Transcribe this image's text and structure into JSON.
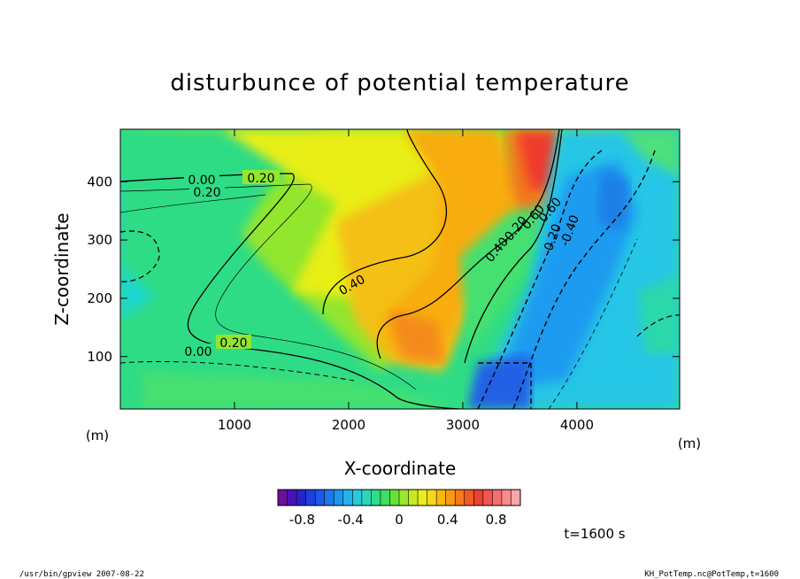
{
  "chart_data": {
    "type": "heatmap",
    "title": "disturbunce of potential temperature",
    "xlabel": "X-coordinate",
    "ylabel": "Z-coordinate",
    "x_unit": "(m)",
    "y_unit": "(m)",
    "xlim": [
      0,
      4900
    ],
    "ylim": [
      10,
      490
    ],
    "x_ticks": [
      1000,
      2000,
      3000,
      4000
    ],
    "y_ticks": [
      100,
      200,
      300,
      400
    ],
    "contour_labels": [
      "0.00",
      "0.20",
      "0.20",
      "0.40",
      "0.00",
      "0.20",
      "-0.20",
      "0.40",
      "0.60",
      "0.60",
      "-0.20",
      "-0.40"
    ],
    "colorbar": {
      "min": -1.0,
      "max": 1.0,
      "tick_values": [
        -0.8,
        -0.4,
        0,
        0.4,
        0.8
      ],
      "tick_labels": [
        "-0.8",
        "-0.4",
        "0",
        "0.4",
        "0.8"
      ]
    },
    "time_label": "t=1600 s"
  },
  "footer": {
    "left": "/usr/bin/gpview   2007-08-22",
    "right": "KH_PotTemp.nc@PotTemp,t=1600"
  }
}
